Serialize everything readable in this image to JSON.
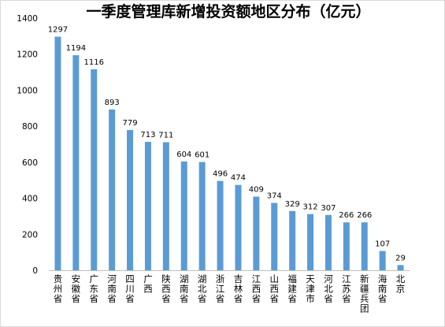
{
  "chart_data": {
    "type": "bar",
    "title": "一季度管理库新增投资额地区分布（亿元）",
    "categories": [
      "贵州省",
      "安徽省",
      "广东省",
      "河南省",
      "四川省",
      "广西",
      "陕西省",
      "湖南省",
      "湖北省",
      "浙江省",
      "吉林省",
      "江西省",
      "山西省",
      "福建省",
      "天津市",
      "河北省",
      "江苏省",
      "新疆兵团",
      "海南省",
      "北京"
    ],
    "values": [
      1297,
      1194,
      1116,
      893,
      779,
      713,
      711,
      604,
      601,
      496,
      474,
      409,
      374,
      329,
      312,
      307,
      266,
      266,
      107,
      29
    ],
    "yticks": [
      "0",
      "200",
      "400",
      "600",
      "800",
      "1000",
      "1200",
      "1400"
    ],
    "ylim": [
      0,
      1400
    ],
    "grid": false,
    "bar_color": "#5b9bd5",
    "xlabel": "",
    "ylabel": ""
  }
}
